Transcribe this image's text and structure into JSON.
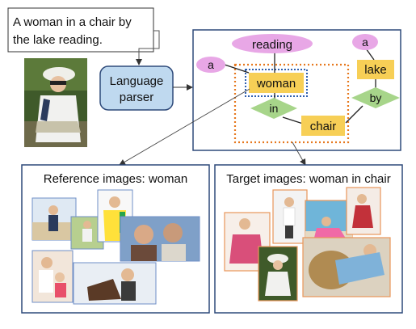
{
  "caption": {
    "line1": "A woman in a chair by",
    "line2": "the lake reading."
  },
  "parser": {
    "line1": "Language",
    "line2": "parser"
  },
  "graph": {
    "nodes": {
      "reading": "reading",
      "a_left": "a",
      "woman": "woman",
      "in": "in",
      "chair": "chair",
      "a_right": "a",
      "lake": "lake",
      "by": "by"
    }
  },
  "panels": {
    "reference": {
      "title": "Reference images: woman"
    },
    "target": {
      "title": "Target images: woman in chair"
    }
  },
  "colors": {
    "attribute": "#e8a7e6",
    "object": "#f7cf56",
    "relation": "#a7d58a",
    "parser": "#bfd9ef",
    "frame": "#2e4a7a",
    "dotted_orange": "#e6781e",
    "dotted_blue": "#2f5fae",
    "reference_border": "#6f8fc7",
    "target_border": "#e8965a"
  }
}
